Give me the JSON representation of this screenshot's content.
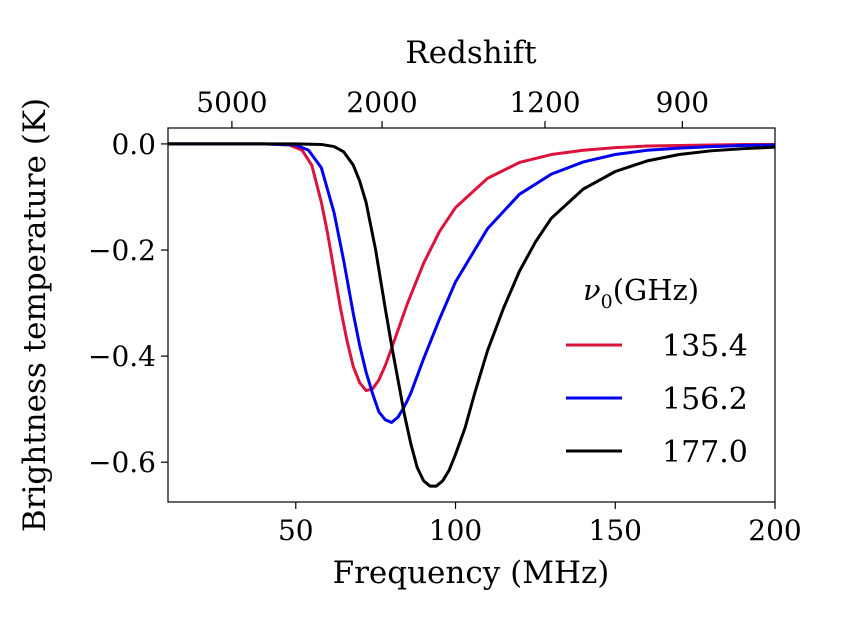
{
  "chart_data": {
    "type": "line",
    "title": "",
    "xlabel": "Frequency (MHz)",
    "ylabel": "Brightness temperature (K)",
    "top_xlabel": "Redshift",
    "xlim": [
      10,
      200
    ],
    "ylim": [
      -0.675,
      0.03
    ],
    "x_ticks": [
      50,
      100,
      150,
      200
    ],
    "x_tick_labels": [
      "50",
      "100",
      "150",
      "200"
    ],
    "y_ticks": [
      0.0,
      -0.2,
      -0.4,
      -0.6
    ],
    "y_tick_labels": [
      "0.0",
      "−0.2",
      "−0.4",
      "−0.6"
    ],
    "top_ticks": [
      {
        "label": "5000",
        "frequency": 30
      },
      {
        "label": "2000",
        "frequency": 77
      },
      {
        "label": "1200",
        "frequency": 128
      },
      {
        "label": "900",
        "frequency": 171
      }
    ],
    "grid": false,
    "legend": {
      "title": "ν0(GHz)",
      "title_symbol": "ν",
      "title_subscript": "0",
      "title_rest": "(GHz)",
      "placement": "right"
    },
    "series": [
      {
        "name": "135.4",
        "color": "#dc143c",
        "x": [
          10,
          40,
          48,
          52,
          55,
          58,
          60,
          62,
          64,
          66,
          68,
          70,
          72,
          74,
          76,
          78,
          80,
          85,
          90,
          95,
          100,
          110,
          120,
          130,
          140,
          150,
          160,
          170,
          180,
          190,
          200
        ],
        "y": [
          0.0,
          0.0,
          -0.002,
          -0.012,
          -0.04,
          -0.11,
          -0.17,
          -0.24,
          -0.31,
          -0.37,
          -0.42,
          -0.45,
          -0.465,
          -0.462,
          -0.445,
          -0.418,
          -0.385,
          -0.3,
          -0.225,
          -0.165,
          -0.12,
          -0.065,
          -0.035,
          -0.02,
          -0.012,
          -0.007,
          -0.004,
          -0.003,
          -0.002,
          -0.001,
          -0.001
        ]
      },
      {
        "name": "156.2",
        "color": "#0000ee",
        "x": [
          10,
          40,
          50,
          54,
          58,
          62,
          65,
          68,
          70,
          72,
          74,
          76,
          78,
          80,
          82,
          84,
          86,
          90,
          95,
          100,
          110,
          120,
          130,
          140,
          150,
          160,
          170,
          180,
          190,
          200
        ],
        "y": [
          0.0,
          0.0,
          -0.002,
          -0.012,
          -0.045,
          -0.13,
          -0.22,
          -0.32,
          -0.38,
          -0.43,
          -0.47,
          -0.505,
          -0.52,
          -0.525,
          -0.515,
          -0.495,
          -0.47,
          -0.405,
          -0.33,
          -0.26,
          -0.16,
          -0.095,
          -0.057,
          -0.034,
          -0.02,
          -0.012,
          -0.008,
          -0.005,
          -0.003,
          -0.002
        ]
      },
      {
        "name": "177.0",
        "color": "#000000",
        "x": [
          10,
          50,
          58,
          62,
          65,
          68,
          70,
          72,
          75,
          78,
          80,
          84,
          86,
          88,
          90,
          92,
          94,
          96,
          98,
          100,
          103,
          106,
          110,
          115,
          120,
          125,
          130,
          140,
          150,
          160,
          170,
          180,
          190,
          200
        ],
        "y": [
          0.0,
          0.0,
          -0.001,
          -0.005,
          -0.015,
          -0.04,
          -0.07,
          -0.11,
          -0.2,
          -0.31,
          -0.38,
          -0.51,
          -0.565,
          -0.61,
          -0.635,
          -0.645,
          -0.645,
          -0.635,
          -0.615,
          -0.585,
          -0.535,
          -0.47,
          -0.39,
          -0.31,
          -0.24,
          -0.185,
          -0.14,
          -0.085,
          -0.052,
          -0.032,
          -0.02,
          -0.013,
          -0.009,
          -0.006
        ]
      }
    ]
  }
}
